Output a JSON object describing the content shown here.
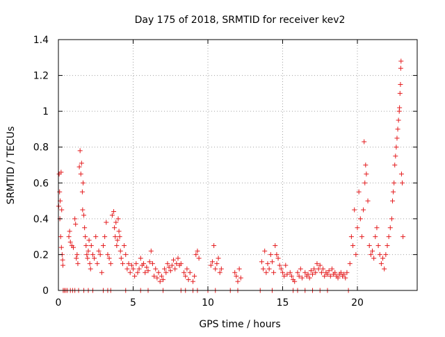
{
  "chart_data": {
    "type": "scatter",
    "title": "Day 175 of 2018, SRMTID for receiver kev2",
    "xlabel": "GPS time / hours",
    "ylabel": "SRMTID / TECUs",
    "xlim": [
      0,
      24
    ],
    "ylim": [
      0,
      1.4
    ],
    "x_ticks": [
      0,
      5,
      10,
      15,
      20
    ],
    "y_ticks": [
      0,
      0.2,
      0.4,
      0.6,
      0.8,
      1,
      1.2,
      1.4
    ],
    "x_tick_labels": [
      "0",
      "5",
      "10",
      "15",
      "20"
    ],
    "y_tick_labels": [
      "0",
      "0.2",
      "0.4",
      "0.6",
      "0.8",
      "1",
      "1.2",
      "1.4"
    ],
    "grid": true,
    "marker": "plus",
    "color": "#e41a1c",
    "series": [
      {
        "name": "SRMTID kev2",
        "points": [
          [
            0.02,
            0.47
          ],
          [
            0.05,
            0.65
          ],
          [
            0.08,
            0.55
          ],
          [
            0.1,
            0.4
          ],
          [
            0.12,
            0.5
          ],
          [
            0.15,
            0.3
          ],
          [
            0.18,
            0.66
          ],
          [
            0.2,
            0.24
          ],
          [
            0.22,
            0.45
          ],
          [
            0.25,
            0.2
          ],
          [
            0.28,
            0.17
          ],
          [
            0.3,
            0.14
          ],
          [
            0.32,
            0.0
          ],
          [
            0.4,
            0.0
          ],
          [
            0.6,
            0.0
          ],
          [
            0.7,
            0.3
          ],
          [
            0.75,
            0.33
          ],
          [
            0.8,
            0.27
          ],
          [
            0.9,
            0.25
          ],
          [
            0.95,
            0.0
          ],
          [
            1.0,
            0.24
          ],
          [
            1.1,
            0.4
          ],
          [
            1.15,
            0.37
          ],
          [
            1.2,
            0.18
          ],
          [
            1.25,
            0.2
          ],
          [
            1.3,
            0.15
          ],
          [
            1.35,
            0.0
          ],
          [
            1.4,
            0.69
          ],
          [
            1.45,
            0.78
          ],
          [
            1.5,
            0.65
          ],
          [
            1.55,
            0.71
          ],
          [
            1.6,
            0.55
          ],
          [
            1.62,
            0.45
          ],
          [
            1.65,
            0.6
          ],
          [
            1.7,
            0.42
          ],
          [
            1.75,
            0.35
          ],
          [
            1.8,
            0.3
          ],
          [
            1.85,
            0.25
          ],
          [
            1.9,
            0.2
          ],
          [
            1.95,
            0.18
          ],
          [
            2.0,
            0.22
          ],
          [
            2.05,
            0.28
          ],
          [
            2.1,
            0.15
          ],
          [
            2.15,
            0.12
          ],
          [
            2.2,
            0.25
          ],
          [
            2.3,
            0.2
          ],
          [
            2.4,
            0.18
          ],
          [
            2.5,
            0.3
          ],
          [
            2.6,
            0.15
          ],
          [
            2.7,
            0.22
          ],
          [
            2.8,
            0.2
          ],
          [
            2.9,
            0.1
          ],
          [
            3.0,
            0.25
          ],
          [
            3.1,
            0.3
          ],
          [
            3.2,
            0.38
          ],
          [
            3.3,
            0.2
          ],
          [
            3.4,
            0.18
          ],
          [
            3.5,
            0.15
          ],
          [
            3.6,
            0.42
          ],
          [
            3.7,
            0.44
          ],
          [
            3.75,
            0.35
          ],
          [
            3.8,
            0.3
          ],
          [
            3.85,
            0.38
          ],
          [
            3.9,
            0.25
          ],
          [
            3.95,
            0.28
          ],
          [
            4.0,
            0.4
          ],
          [
            4.05,
            0.33
          ],
          [
            4.1,
            0.3
          ],
          [
            4.15,
            0.22
          ],
          [
            4.2,
            0.18
          ],
          [
            4.3,
            0.15
          ],
          [
            4.4,
            0.25
          ],
          [
            4.5,
            0.2
          ],
          [
            4.6,
            0.12
          ],
          [
            4.7,
            0.15
          ],
          [
            4.8,
            0.1
          ],
          [
            4.9,
            0.14
          ],
          [
            5.0,
            0.12
          ],
          [
            5.1,
            0.08
          ],
          [
            5.2,
            0.15
          ],
          [
            5.3,
            0.1
          ],
          [
            5.4,
            0.12
          ],
          [
            5.5,
            0.18
          ],
          [
            5.6,
            0.14
          ],
          [
            5.7,
            0.15
          ],
          [
            5.8,
            0.1
          ],
          [
            5.9,
            0.13
          ],
          [
            6.0,
            0.11
          ],
          [
            6.1,
            0.16
          ],
          [
            6.2,
            0.22
          ],
          [
            6.3,
            0.15
          ],
          [
            6.4,
            0.08
          ],
          [
            6.5,
            0.12
          ],
          [
            6.6,
            0.07
          ],
          [
            6.7,
            0.1
          ],
          [
            6.8,
            0.05
          ],
          [
            6.9,
            0.08
          ],
          [
            7.0,
            0.06
          ],
          [
            7.1,
            0.12
          ],
          [
            7.2,
            0.1
          ],
          [
            7.3,
            0.15
          ],
          [
            7.4,
            0.13
          ],
          [
            7.5,
            0.11
          ],
          [
            7.6,
            0.14
          ],
          [
            7.7,
            0.17
          ],
          [
            7.8,
            0.12
          ],
          [
            7.9,
            0.15
          ],
          [
            8.0,
            0.18
          ],
          [
            8.1,
            0.14
          ],
          [
            8.2,
            0.15
          ],
          [
            8.4,
            0.1
          ],
          [
            8.5,
            0.08
          ],
          [
            8.6,
            0.12
          ],
          [
            8.7,
            0.06
          ],
          [
            8.8,
            0.1
          ],
          [
            9.0,
            0.05
          ],
          [
            9.1,
            0.08
          ],
          [
            9.2,
            0.2
          ],
          [
            9.3,
            0.22
          ],
          [
            9.4,
            0.18
          ],
          [
            10.2,
            0.14
          ],
          [
            10.3,
            0.16
          ],
          [
            10.4,
            0.25
          ],
          [
            10.5,
            0.12
          ],
          [
            10.6,
            0.15
          ],
          [
            10.7,
            0.18
          ],
          [
            10.8,
            0.1
          ],
          [
            10.9,
            0.12
          ],
          [
            11.8,
            0.1
          ],
          [
            11.9,
            0.08
          ],
          [
            12.0,
            0.05
          ],
          [
            12.1,
            0.12
          ],
          [
            12.2,
            0.07
          ],
          [
            13.6,
            0.16
          ],
          [
            13.7,
            0.12
          ],
          [
            13.8,
            0.22
          ],
          [
            13.9,
            0.1
          ],
          [
            14.0,
            0.15
          ],
          [
            14.1,
            0.12
          ],
          [
            14.2,
            0.2
          ],
          [
            14.3,
            0.16
          ],
          [
            14.4,
            0.1
          ],
          [
            14.5,
            0.25
          ],
          [
            14.6,
            0.2
          ],
          [
            14.7,
            0.18
          ],
          [
            14.8,
            0.14
          ],
          [
            14.9,
            0.12
          ],
          [
            15.0,
            0.1
          ],
          [
            15.1,
            0.08
          ],
          [
            15.2,
            0.14
          ],
          [
            15.3,
            0.09
          ],
          [
            15.5,
            0.1
          ],
          [
            15.6,
            0.08
          ],
          [
            15.7,
            0.06
          ],
          [
            15.8,
            0.05
          ],
          [
            16.0,
            0.1
          ],
          [
            16.1,
            0.08
          ],
          [
            16.2,
            0.12
          ],
          [
            16.3,
            0.07
          ],
          [
            16.5,
            0.1
          ],
          [
            16.6,
            0.08
          ],
          [
            16.7,
            0.09
          ],
          [
            16.8,
            0.07
          ],
          [
            16.9,
            0.11
          ],
          [
            17.0,
            0.09
          ],
          [
            17.1,
            0.12
          ],
          [
            17.2,
            0.1
          ],
          [
            17.3,
            0.15
          ],
          [
            17.4,
            0.12
          ],
          [
            17.5,
            0.14
          ],
          [
            17.6,
            0.1
          ],
          [
            17.7,
            0.12
          ],
          [
            17.8,
            0.08
          ],
          [
            17.9,
            0.1
          ],
          [
            18.0,
            0.09
          ],
          [
            18.1,
            0.11
          ],
          [
            18.2,
            0.08
          ],
          [
            18.3,
            0.12
          ],
          [
            18.4,
            0.09
          ],
          [
            18.5,
            0.1
          ],
          [
            18.6,
            0.08
          ],
          [
            18.7,
            0.07
          ],
          [
            18.8,
            0.09
          ],
          [
            18.9,
            0.1
          ],
          [
            19.0,
            0.08
          ],
          [
            19.1,
            0.09
          ],
          [
            19.2,
            0.07
          ],
          [
            19.3,
            0.1
          ],
          [
            19.5,
            0.15
          ],
          [
            19.6,
            0.3
          ],
          [
            19.7,
            0.25
          ],
          [
            19.8,
            0.45
          ],
          [
            19.9,
            0.2
          ],
          [
            20.0,
            0.35
          ],
          [
            20.1,
            0.55
          ],
          [
            20.2,
            0.4
          ],
          [
            20.3,
            0.3
          ],
          [
            20.4,
            0.45
          ],
          [
            20.45,
            0.83
          ],
          [
            20.5,
            0.6
          ],
          [
            20.55,
            0.7
          ],
          [
            20.6,
            0.65
          ],
          [
            20.7,
            0.5
          ],
          [
            20.8,
            0.25
          ],
          [
            20.9,
            0.2
          ],
          [
            21.0,
            0.22
          ],
          [
            21.1,
            0.18
          ],
          [
            21.2,
            0.3
          ],
          [
            21.3,
            0.35
          ],
          [
            21.4,
            0.25
          ],
          [
            21.5,
            0.2
          ],
          [
            21.6,
            0.15
          ],
          [
            21.7,
            0.18
          ],
          [
            21.8,
            0.12
          ],
          [
            21.9,
            0.2
          ],
          [
            22.0,
            0.25
          ],
          [
            22.1,
            0.3
          ],
          [
            22.2,
            0.35
          ],
          [
            22.3,
            0.4
          ],
          [
            22.35,
            0.5
          ],
          [
            22.4,
            0.55
          ],
          [
            22.45,
            0.6
          ],
          [
            22.5,
            0.7
          ],
          [
            22.55,
            0.75
          ],
          [
            22.6,
            0.8
          ],
          [
            22.65,
            0.85
          ],
          [
            22.7,
            0.9
          ],
          [
            22.75,
            0.95
          ],
          [
            22.8,
            1.0
          ],
          [
            22.82,
            1.02
          ],
          [
            22.85,
            1.1
          ],
          [
            22.88,
            1.15
          ],
          [
            22.9,
            1.24
          ],
          [
            22.92,
            1.28
          ],
          [
            22.95,
            0.65
          ],
          [
            23.0,
            0.6
          ],
          [
            23.05,
            0.3
          ],
          [
            0.5,
            0.0
          ],
          [
            0.8,
            0.0
          ],
          [
            1.1,
            0.0
          ],
          [
            1.7,
            0.0
          ],
          [
            2.0,
            0.0
          ],
          [
            2.3,
            0.0
          ],
          [
            3.0,
            0.0
          ],
          [
            3.3,
            0.0
          ],
          [
            3.5,
            0.0
          ],
          [
            4.5,
            0.0
          ],
          [
            5.5,
            0.0
          ],
          [
            6.0,
            0.0
          ],
          [
            7.0,
            0.0
          ],
          [
            8.2,
            0.0
          ],
          [
            8.5,
            0.0
          ],
          [
            9.0,
            0.0
          ],
          [
            9.3,
            0.0
          ],
          [
            10.0,
            0.0
          ],
          [
            10.5,
            0.0
          ],
          [
            11.5,
            0.0
          ],
          [
            12.0,
            0.0
          ],
          [
            13.5,
            0.0
          ],
          [
            14.3,
            0.0
          ],
          [
            15.7,
            0.0
          ],
          [
            16.0,
            0.0
          ],
          [
            16.5,
            0.0
          ],
          [
            17.0,
            0.0
          ],
          [
            17.5,
            0.0
          ],
          [
            18.0,
            0.0
          ],
          [
            19.4,
            0.0
          ]
        ]
      }
    ]
  }
}
